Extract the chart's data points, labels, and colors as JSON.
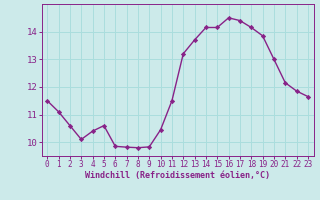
{
  "x": [
    0,
    1,
    2,
    3,
    4,
    5,
    6,
    7,
    8,
    9,
    10,
    11,
    12,
    13,
    14,
    15,
    16,
    17,
    18,
    19,
    20,
    21,
    22,
    23
  ],
  "y": [
    11.5,
    11.1,
    10.6,
    10.1,
    10.4,
    10.6,
    9.85,
    9.82,
    9.8,
    9.83,
    10.45,
    11.5,
    13.2,
    13.7,
    14.15,
    14.15,
    14.5,
    14.4,
    14.15,
    13.85,
    13.0,
    12.15,
    11.85,
    11.65
  ],
  "line_color": "#882288",
  "marker": "D",
  "marker_size": 2.2,
  "bg_color": "#cceaea",
  "grid_color": "#aadddd",
  "xlabel": "Windchill (Refroidissement éolien,°C)",
  "xlabel_color": "#882288",
  "tick_color": "#882288",
  "ylim": [
    9.5,
    15.0
  ],
  "xlim": [
    -0.5,
    23.5
  ],
  "yticks": [
    10,
    11,
    12,
    13,
    14
  ],
  "xticks": [
    0,
    1,
    2,
    3,
    4,
    5,
    6,
    7,
    8,
    9,
    10,
    11,
    12,
    13,
    14,
    15,
    16,
    17,
    18,
    19,
    20,
    21,
    22,
    23
  ]
}
